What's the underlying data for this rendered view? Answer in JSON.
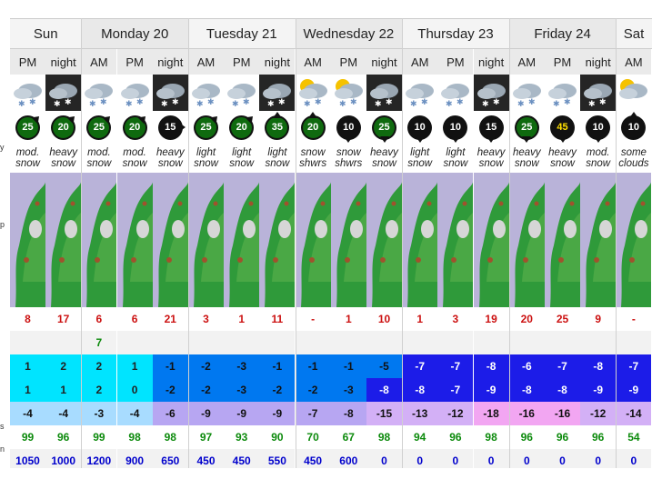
{
  "days": [
    {
      "name": "Sun",
      "start": 0,
      "span": 2
    },
    {
      "name": "Monday 20",
      "start": 2,
      "span": 3
    },
    {
      "name": "Tuesday 21",
      "start": 5,
      "span": 3
    },
    {
      "name": "Wednesday 22",
      "start": 8,
      "span": 3
    },
    {
      "name": "Thursday 23",
      "start": 11,
      "span": 3
    },
    {
      "name": "Friday 24",
      "start": 14,
      "span": 3
    },
    {
      "name": "Sat",
      "start": 17,
      "span": 1
    }
  ],
  "left_labels": [
    "y",
    "p",
    "s",
    "n"
  ],
  "columns": [
    {
      "period": "PM",
      "icon": "snow-cloud-icon",
      "wind": "25",
      "wind_style": "green",
      "wind_dir": "NE",
      "summary": [
        "mod.",
        "snow"
      ],
      "r1": "8",
      "r2": "",
      "t1": "1",
      "t2": "1",
      "t3": "-4",
      "hum": "99",
      "fl": "1050"
    },
    {
      "period": "night",
      "icon": "night-snow-cloud-icon",
      "wind": "20",
      "wind_style": "green",
      "wind_dir": "NE",
      "summary": [
        "heavy",
        "snow"
      ],
      "r1": "17",
      "r2": "",
      "t1": "2",
      "t2": "1",
      "t3": "-4",
      "hum": "96",
      "fl": "1000"
    },
    {
      "period": "AM",
      "icon": "snow-cloud-icon",
      "wind": "25",
      "wind_style": "green",
      "wind_dir": "NE",
      "summary": [
        "mod.",
        "snow"
      ],
      "r1": "6",
      "r2": "7",
      "t1": "2",
      "t2": "2",
      "t3": "-3",
      "hum": "99",
      "fl": "1200"
    },
    {
      "period": "PM",
      "icon": "snow-cloud-icon",
      "wind": "20",
      "wind_style": "green",
      "wind_dir": "NE",
      "summary": [
        "mod.",
        "snow"
      ],
      "r1": "6",
      "r2": "",
      "t1": "1",
      "t2": "0",
      "t3": "-4",
      "hum": "98",
      "fl": "900"
    },
    {
      "period": "night",
      "icon": "night-snow-cloud-icon",
      "wind": "15",
      "wind_style": "black",
      "wind_dir": "E",
      "summary": [
        "heavy",
        "snow"
      ],
      "r1": "21",
      "r2": "",
      "t1": "-1",
      "t2": "-2",
      "t3": "-6",
      "hum": "98",
      "fl": "650"
    },
    {
      "period": "AM",
      "icon": "snow-cloud-icon",
      "wind": "25",
      "wind_style": "green",
      "wind_dir": "NE",
      "summary": [
        "light",
        "snow"
      ],
      "r1": "3",
      "r2": "",
      "t1": "-2",
      "t2": "-2",
      "t3": "-9",
      "hum": "97",
      "fl": "450"
    },
    {
      "period": "PM",
      "icon": "snow-cloud-icon",
      "wind": "20",
      "wind_style": "green",
      "wind_dir": "NE",
      "summary": [
        "light",
        "snow"
      ],
      "r1": "1",
      "r2": "",
      "t1": "-3",
      "t2": "-3",
      "t3": "-9",
      "hum": "93",
      "fl": "450"
    },
    {
      "period": "night",
      "icon": "night-snow-cloud-icon",
      "wind": "35",
      "wind_style": "green",
      "wind_dir": "N",
      "summary": [
        "light",
        "snow"
      ],
      "r1": "11",
      "r2": "",
      "t1": "-1",
      "t2": "-2",
      "t3": "-9",
      "hum": "90",
      "fl": "550"
    },
    {
      "period": "AM",
      "icon": "sun-snow-cloud-icon",
      "wind": "20",
      "wind_style": "green",
      "wind_dir": "N",
      "summary": [
        "snow",
        "shwrs"
      ],
      "r1": "-",
      "r2": "",
      "t1": "-1",
      "t2": "-2",
      "t3": "-7",
      "hum": "70",
      "fl": "450"
    },
    {
      "period": "PM",
      "icon": "sun-snow-cloud-icon",
      "wind": "10",
      "wind_style": "black",
      "wind_dir": "S",
      "summary": [
        "snow",
        "shwrs"
      ],
      "r1": "1",
      "r2": "",
      "t1": "-1",
      "t2": "-3",
      "t3": "-8",
      "hum": "67",
      "fl": "600"
    },
    {
      "period": "night",
      "icon": "night-snow-cloud-icon",
      "wind": "25",
      "wind_style": "green",
      "wind_dir": "S",
      "summary": [
        "heavy",
        "snow"
      ],
      "r1": "10",
      "r2": "",
      "t1": "-5",
      "t2": "-8",
      "t3": "-15",
      "hum": "98",
      "fl": "0"
    },
    {
      "period": "AM",
      "icon": "snow-cloud-icon",
      "wind": "10",
      "wind_style": "black",
      "wind_dir": "S",
      "summary": [
        "light",
        "snow"
      ],
      "r1": "1",
      "r2": "",
      "t1": "-7",
      "t2": "-8",
      "t3": "-13",
      "hum": "94",
      "fl": "0"
    },
    {
      "period": "PM",
      "icon": "snow-cloud-icon",
      "wind": "10",
      "wind_style": "black",
      "wind_dir": "S",
      "summary": [
        "light",
        "snow"
      ],
      "r1": "3",
      "r2": "",
      "t1": "-7",
      "t2": "-7",
      "t3": "-12",
      "hum": "96",
      "fl": "0"
    },
    {
      "period": "night",
      "icon": "night-snow-cloud-icon",
      "wind": "15",
      "wind_style": "black",
      "wind_dir": "S",
      "summary": [
        "heavy",
        "snow"
      ],
      "r1": "19",
      "r2": "",
      "t1": "-8",
      "t2": "-9",
      "t3": "-18",
      "hum": "98",
      "fl": "0"
    },
    {
      "period": "AM",
      "icon": "snow-cloud-icon",
      "wind": "25",
      "wind_style": "green",
      "wind_dir": "S",
      "summary": [
        "heavy",
        "snow"
      ],
      "r1": "20",
      "r2": "",
      "t1": "-6",
      "t2": "-8",
      "t3": "-16",
      "hum": "96",
      "fl": "0"
    },
    {
      "period": "PM",
      "icon": "snow-cloud-icon",
      "wind": "45",
      "wind_style": "yellow",
      "wind_dir": "S",
      "summary": [
        "heavy",
        "snow"
      ],
      "r1": "25",
      "r2": "",
      "t1": "-7",
      "t2": "-8",
      "t3": "-16",
      "hum": "96",
      "fl": "0"
    },
    {
      "period": "night",
      "icon": "night-snow-cloud-icon",
      "wind": "10",
      "wind_style": "black",
      "wind_dir": "S",
      "summary": [
        "mod.",
        "snow"
      ],
      "r1": "9",
      "r2": "",
      "t1": "-8",
      "t2": "-9",
      "t3": "-12",
      "hum": "96",
      "fl": "0"
    },
    {
      "period": "AM",
      "icon": "sun-cloud-icon",
      "wind": "10",
      "wind_style": "black",
      "wind_dir": "N",
      "summary": [
        "some",
        "clouds"
      ],
      "r1": "-",
      "r2": "",
      "t1": "-7",
      "t2": "-9",
      "t3": "-14",
      "hum": "54",
      "fl": "0"
    }
  ],
  "colors": {
    "t1": [
      "#00e4ff",
      "#00e4ff",
      "#00e4ff",
      "#00e4ff",
      "#0078f0",
      "#0078f0",
      "#0078f0",
      "#0078f0",
      "#0078f0",
      "#0078f0",
      "#0078f0",
      "#1c1ce8",
      "#1c1ce8",
      "#1c1ce8",
      "#1c1ce8",
      "#1c1ce8",
      "#1c1ce8",
      "#1c1ce8"
    ],
    "t2": [
      "#00e4ff",
      "#00e4ff",
      "#00e4ff",
      "#00e4ff",
      "#0078f0",
      "#0078f0",
      "#0078f0",
      "#0078f0",
      "#0078f0",
      "#0078f0",
      "#1c1ce8",
      "#1c1ce8",
      "#1c1ce8",
      "#1c1ce8",
      "#1c1ce8",
      "#1c1ce8",
      "#1c1ce8",
      "#1c1ce8"
    ],
    "t3": [
      "#a8dcff",
      "#a8dcff",
      "#a8dcff",
      "#a8dcff",
      "#b7a6f2",
      "#b7a6f2",
      "#b7a6f2",
      "#b7a6f2",
      "#b7a6f2",
      "#b7a6f2",
      "#d3b0f6",
      "#d3b0f6",
      "#d3b0f6",
      "#f2a6f2",
      "#f2a6f2",
      "#f2a6f2",
      "#d3b0f6",
      "#d3b0f6"
    ]
  }
}
